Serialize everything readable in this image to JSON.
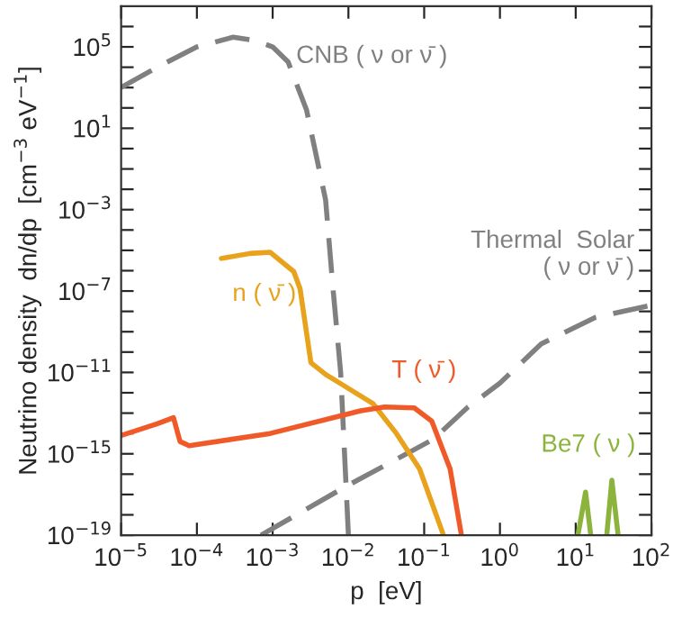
{
  "chart_data": {
    "type": "line",
    "xlabel": "p  [eV]",
    "ylabel": "Neutrino density  dn/dp  [cm$^{−3}$ eV$^{−1}$]",
    "log": "xy",
    "grid": false,
    "legend": false,
    "xlim": [
      1e-05,
      100
    ],
    "ylim": [
      1e-19,
      10000000.0
    ],
    "xticks": [
      {
        "value": 1e-05,
        "label": "10$^{−5}$"
      },
      {
        "value": 0.0001,
        "label": "10$^{−4}$"
      },
      {
        "value": 0.001,
        "label": "10$^{−3}$"
      },
      {
        "value": 0.01,
        "label": "10$^{−2}$"
      },
      {
        "value": 0.1,
        "label": "10$^{−1}$"
      },
      {
        "value": 1,
        "label": "10$^{0}$"
      },
      {
        "value": 10,
        "label": "10$^{1}$"
      },
      {
        "value": 100,
        "label": "10$^{2}$"
      }
    ],
    "yticks": [
      {
        "value": 1e-19,
        "label": "10$^{−19}$"
      },
      {
        "value": 1e-18,
        "label": null
      },
      {
        "value": 1e-17,
        "label": null
      },
      {
        "value": 1e-16,
        "label": null
      },
      {
        "value": 1e-15,
        "label": "10$^{−15}$"
      },
      {
        "value": 1e-14,
        "label": null
      },
      {
        "value": 1e-13,
        "label": null
      },
      {
        "value": 1e-12,
        "label": null
      },
      {
        "value": 1e-11,
        "label": "10$^{−11}$"
      },
      {
        "value": 1e-10,
        "label": null
      },
      {
        "value": 1e-09,
        "label": null
      },
      {
        "value": 1e-08,
        "label": null
      },
      {
        "value": 1e-07,
        "label": "10$^{−7}$"
      },
      {
        "value": 1e-06,
        "label": null
      },
      {
        "value": 1e-05,
        "label": null
      },
      {
        "value": 0.0001,
        "label": null
      },
      {
        "value": 0.001,
        "label": "10$^{−3}$"
      },
      {
        "value": 0.01,
        "label": null
      },
      {
        "value": 0.1,
        "label": null
      },
      {
        "value": 1,
        "label": null
      },
      {
        "value": 10,
        "label": "10$^{1}$"
      },
      {
        "value": 100,
        "label": null
      },
      {
        "value": 1000,
        "label": null
      },
      {
        "value": 10000,
        "label": null
      },
      {
        "value": 100000,
        "label": "10$^{5}$"
      },
      {
        "value": 1000000,
        "label": null
      }
    ],
    "series": [
      {
        "name": "CNB ( ν or ν̄ )",
        "color": "#808080",
        "line_style": "dashed",
        "x": [
          1e-05,
          3e-05,
          0.0001,
          0.0003,
          0.0006,
          0.001,
          0.0016,
          0.0028,
          0.005,
          0.0063,
          0.0079,
          0.01
        ],
        "values": [
          1000.0,
          10000.0,
          100000.0,
          300000.0,
          200000.0,
          100000.0,
          18000.0,
          80,
          0.003,
          1e-07,
          1e-11,
          1e-19
        ]
      },
      {
        "name": "Thermal  Solar\n( ν or ν̄ )",
        "color": "#808080",
        "line_style": "dashed",
        "x": [
          0.0007,
          0.0093,
          0.13,
          0.38,
          1,
          3.5,
          18,
          100
        ],
        "values": [
          1e-19,
          2.5e-17,
          5e-15,
          2e-13,
          3e-12,
          2.5e-10,
          5e-09,
          2e-08
        ]
      },
      {
        "name": "n ( ν̄ )",
        "color": "#e8a21c",
        "line_style": "solid",
        "x": [
          0.00021,
          0.0005,
          0.00093,
          0.0019,
          0.0023,
          0.0032,
          0.005,
          0.0083,
          0.021,
          0.043,
          0.087,
          0.18
        ],
        "values": [
          4e-06,
          7e-06,
          8e-06,
          9e-07,
          1.3e-07,
          3e-11,
          8e-12,
          2.5e-12,
          3e-13,
          1e-14,
          1.8e-16,
          1e-19
        ]
      },
      {
        "name": "T ( ν̄ )",
        "color": "#f05a28",
        "line_style": "solid",
        "x": [
          1e-05,
          3e-05,
          4.9e-05,
          6e-05,
          7.9e-05,
          0.00093,
          0.0145,
          0.03,
          0.074,
          0.126,
          0.22,
          0.31
        ],
        "values": [
          8e-15,
          3e-14,
          6e-14,
          4e-15,
          2.5e-15,
          1e-14,
          1.3e-13,
          2e-13,
          1.8e-13,
          4e-14,
          1.8e-16,
          1e-19
        ]
      },
      {
        "name": "Be7 ( ν )",
        "color": "#8cb43c",
        "line_style": "solid",
        "x": [
          10.7,
          13.5,
          15.8,
          20,
          25.7,
          30,
          36.3
        ],
        "values": [
          1e-19,
          1.3e-17,
          1e-19,
          null,
          1e-19,
          5e-17,
          1e-19
        ]
      }
    ]
  }
}
